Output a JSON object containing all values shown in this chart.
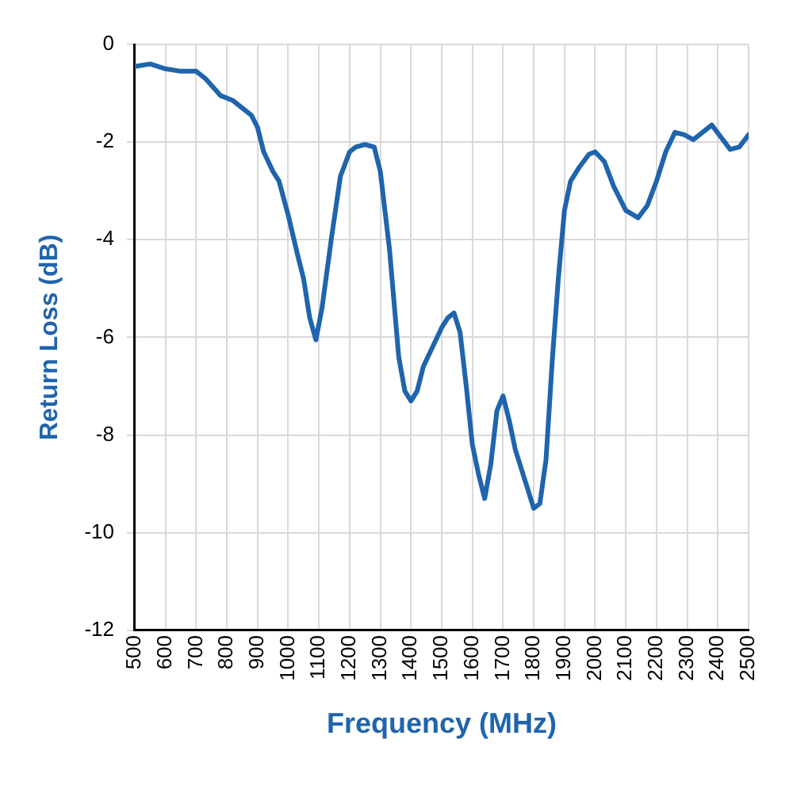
{
  "chart_data": {
    "type": "line",
    "xlabel": "Frequency (MHz)",
    "ylabel": "Return Loss (dB)",
    "xlim": [
      500,
      2500
    ],
    "xticks": [
      500,
      600,
      700,
      800,
      900,
      1000,
      1100,
      1200,
      1300,
      1400,
      1500,
      1600,
      1700,
      1800,
      1900,
      2000,
      2100,
      2200,
      2300,
      2400,
      2500
    ],
    "ylim": [
      -12,
      0
    ],
    "yticks": [
      -12,
      -10,
      -8,
      -6,
      -4,
      -2,
      0
    ],
    "grid": true,
    "legend": false,
    "marker": "none",
    "line_style": "solid",
    "series": [
      {
        "color": "#1f64ad",
        "x": [
          500,
          550,
          600,
          650,
          700,
          730,
          780,
          820,
          850,
          880,
          900,
          920,
          950,
          970,
          1000,
          1030,
          1050,
          1070,
          1090,
          1110,
          1140,
          1170,
          1200,
          1220,
          1250,
          1280,
          1300,
          1330,
          1360,
          1380,
          1400,
          1420,
          1440,
          1470,
          1500,
          1520,
          1540,
          1560,
          1580,
          1600,
          1620,
          1640,
          1660,
          1680,
          1700,
          1720,
          1740,
          1770,
          1800,
          1820,
          1840,
          1860,
          1880,
          1900,
          1920,
          1950,
          1980,
          2000,
          2030,
          2060,
          2100,
          2140,
          2170,
          2200,
          2230,
          2260,
          2290,
          2320,
          2350,
          2380,
          2410,
          2440,
          2470,
          2500
        ],
        "values": [
          -0.45,
          -0.4,
          -0.5,
          -0.55,
          -0.55,
          -0.7,
          -1.05,
          -1.15,
          -1.3,
          -1.45,
          -1.7,
          -2.2,
          -2.6,
          -2.8,
          -3.5,
          -4.3,
          -4.8,
          -5.6,
          -6.05,
          -5.4,
          -4.0,
          -2.7,
          -2.2,
          -2.1,
          -2.05,
          -2.1,
          -2.6,
          -4.2,
          -6.4,
          -7.1,
          -7.3,
          -7.1,
          -6.6,
          -6.2,
          -5.8,
          -5.6,
          -5.5,
          -5.9,
          -7.0,
          -8.2,
          -8.8,
          -9.3,
          -8.6,
          -7.5,
          -7.2,
          -7.7,
          -8.3,
          -8.9,
          -9.5,
          -9.4,
          -8.5,
          -6.5,
          -4.8,
          -3.4,
          -2.8,
          -2.5,
          -2.25,
          -2.2,
          -2.4,
          -2.9,
          -3.4,
          -3.55,
          -3.3,
          -2.8,
          -2.2,
          -1.8,
          -1.85,
          -1.95,
          -1.8,
          -1.65,
          -1.9,
          -2.15,
          -2.1,
          -1.85
        ]
      }
    ]
  }
}
